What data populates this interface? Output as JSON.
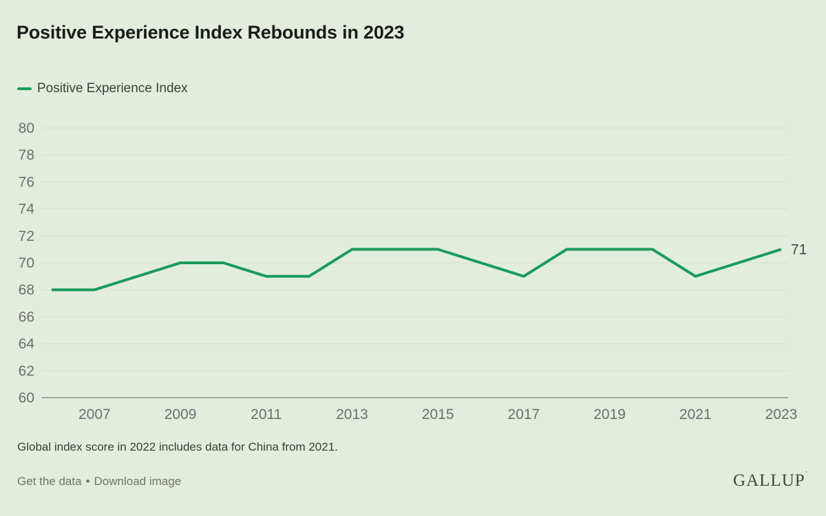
{
  "header": {
    "title": "Positive Experience Index Rebounds in 2023"
  },
  "legend": {
    "label": "Positive Experience Index"
  },
  "colors": {
    "line_green": "#1a9b5c",
    "background": "#e2edde",
    "grid": "#d8ddd3",
    "axis_baseline": "#a7a79f",
    "axis_label": "#6e6e6e"
  },
  "chart_data": {
    "type": "line",
    "title": "Positive Experience Index Rebounds in 2023",
    "x": [
      2006,
      2007,
      2008,
      2009,
      2010,
      2011,
      2012,
      2013,
      2014,
      2015,
      2016,
      2017,
      2018,
      2019,
      2020,
      2021,
      2022,
      2023
    ],
    "series": [
      {
        "name": "Positive Experience Index",
        "color": "#1a9b5c",
        "values": [
          68,
          68,
          69,
          70,
          70,
          69,
          69,
          71,
          71,
          71,
          70,
          69,
          71,
          71,
          71,
          69,
          70,
          71
        ]
      }
    ],
    "xlabel": "",
    "ylabel": "",
    "ylim": [
      60,
      80
    ],
    "yticks": [
      60,
      62,
      64,
      66,
      68,
      70,
      72,
      74,
      76,
      78,
      80
    ],
    "xticks": [
      2007,
      2009,
      2011,
      2013,
      2015,
      2017,
      2019,
      2021,
      2023
    ],
    "grid": "horizontal",
    "legend_position": "top-left",
    "end_label": "71"
  },
  "footnote": {
    "text": "Global index score in 2022 includes data for China from 2021."
  },
  "footer": {
    "links": [
      "Get the data",
      "Download image"
    ],
    "separator": "•",
    "logo": "GALLUP",
    "logo_mark": "’"
  }
}
